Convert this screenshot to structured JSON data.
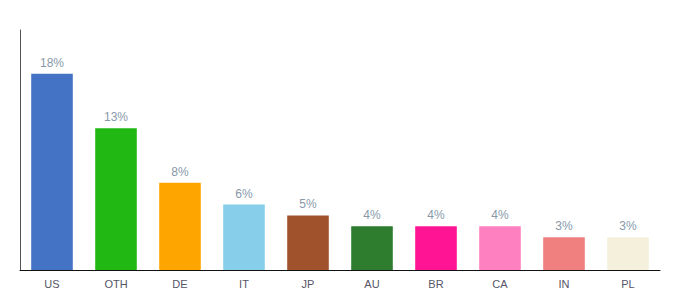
{
  "chart_data": {
    "type": "bar",
    "categories": [
      "US",
      "OTH",
      "DE",
      "IT",
      "JP",
      "AU",
      "BR",
      "CA",
      "IN",
      "PL"
    ],
    "values": [
      18,
      13,
      8,
      6,
      5,
      4,
      4,
      4,
      3,
      3
    ],
    "value_labels": [
      "18%",
      "13%",
      "8%",
      "6%",
      "5%",
      "4%",
      "4%",
      "4%",
      "3%",
      "3%"
    ],
    "data_labels": true,
    "colors": [
      "#4472C4",
      "#22B814",
      "#FFA500",
      "#87CEEB",
      "#A0522D",
      "#2E7D2E",
      "#FF1493",
      "#FF80C0",
      "#F08080",
      "#F5F0DC"
    ],
    "ylim": [
      0,
      22
    ],
    "tick_labels": "x",
    "grid": false
  }
}
